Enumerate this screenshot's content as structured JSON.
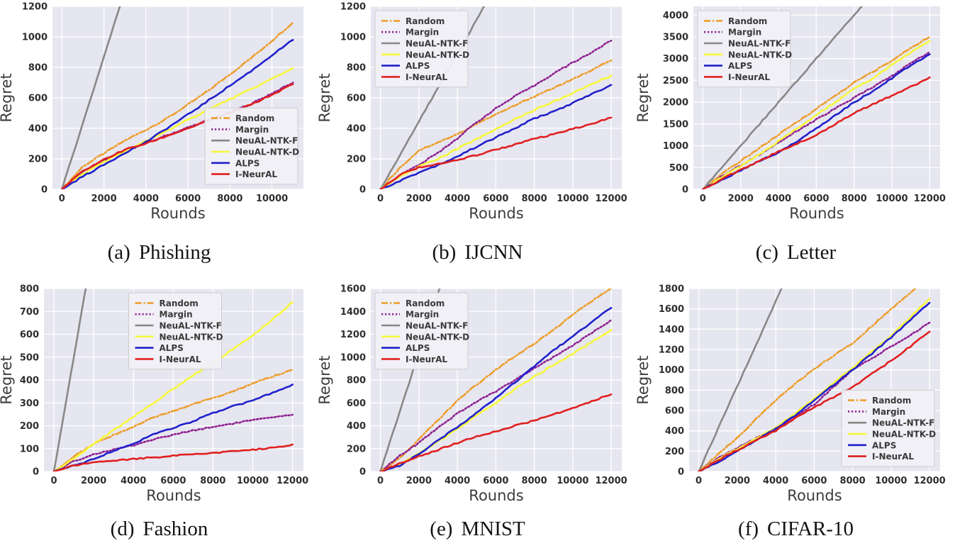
{
  "figure": {
    "background": "#ffffff",
    "plot_bg": "#E6E6F0",
    "grid_color": "#FFFFFF",
    "tick_color": "#2E2E2E",
    "axis_label_color": "#3C3C3C",
    "legend_bg": "#F0F0F6",
    "legend_border": "#CCCCCC",
    "legend_text_color": "#3A3A3A"
  },
  "series_meta": [
    {
      "name": "Random",
      "color": "#ED9E2D",
      "style": "dashdot"
    },
    {
      "name": "Margin",
      "color": "#8E2090",
      "style": "dotted"
    },
    {
      "name": "NeuAL-NTK-F",
      "color": "#888888",
      "style": "solid"
    },
    {
      "name": "NeuAL-NTK-D",
      "color": "#F7F73C",
      "style": "solid"
    },
    {
      "name": "ALPS",
      "color": "#2121CC",
      "style": "solid"
    },
    {
      "name": "I-NeurAL",
      "color": "#E02020",
      "style": "solid"
    }
  ],
  "chart_data": [
    {
      "id": "a",
      "type": "line",
      "caption_prefix": "(a)",
      "caption_label": "Phishing",
      "xlabel": "Rounds",
      "ylabel": "Regret",
      "xlim": [
        -450,
        11500
      ],
      "ylim": [
        0,
        1200
      ],
      "xticks": [
        0,
        2000,
        4000,
        6000,
        8000,
        10000
      ],
      "yticks": [
        0,
        200,
        400,
        600,
        800,
        1000,
        1200
      ],
      "grid": true,
      "legend_pos": "lower-right",
      "x": [
        0,
        1000,
        2000,
        3000,
        4000,
        5000,
        6000,
        7000,
        8000,
        9000,
        10000,
        11000
      ],
      "series": [
        {
          "name": "Random",
          "values": [
            0,
            150,
            235,
            320,
            390,
            465,
            555,
            650,
            755,
            860,
            975,
            1095
          ]
        },
        {
          "name": "Margin",
          "values": [
            0,
            115,
            190,
            255,
            300,
            355,
            405,
            455,
            505,
            560,
            630,
            700
          ]
        },
        {
          "name": "NeuAL-NTK-F",
          "values": [
            0,
            435,
            870,
            1305,
            1740,
            2175,
            2610,
            3045,
            3480,
            3915,
            4350,
            4785
          ]
        },
        {
          "name": "NeuAL-NTK-D",
          "values": [
            0,
            100,
            180,
            250,
            315,
            385,
            455,
            525,
            590,
            655,
            725,
            795
          ]
        },
        {
          "name": "ALPS",
          "values": [
            0,
            85,
            160,
            240,
            310,
            400,
            490,
            585,
            680,
            775,
            880,
            980
          ]
        },
        {
          "name": "I-NeurAL",
          "values": [
            0,
            120,
            195,
            260,
            300,
            350,
            400,
            450,
            500,
            555,
            620,
            690
          ]
        }
      ]
    },
    {
      "id": "b",
      "type": "line",
      "caption_prefix": "(b)",
      "caption_label": "IJCNN",
      "xlabel": "Rounds",
      "ylabel": "Regret",
      "xlim": [
        -500,
        12550
      ],
      "ylim": [
        0,
        1200
      ],
      "xticks": [
        0,
        2000,
        4000,
        6000,
        8000,
        10000,
        12000
      ],
      "yticks": [
        0,
        200,
        400,
        600,
        800,
        1000,
        1200
      ],
      "grid": true,
      "legend_pos": "upper-left",
      "x": [
        0,
        1000,
        2000,
        3000,
        4000,
        5000,
        6000,
        7000,
        8000,
        9000,
        10000,
        11000,
        12000
      ],
      "series": [
        {
          "name": "Random",
          "values": [
            0,
            140,
            255,
            310,
            360,
            430,
            490,
            550,
            610,
            665,
            720,
            785,
            845
          ]
        },
        {
          "name": "Margin",
          "values": [
            0,
            90,
            160,
            240,
            335,
            440,
            530,
            610,
            680,
            760,
            830,
            900,
            975
          ]
        },
        {
          "name": "NeuAL-NTK-F",
          "values": [
            0,
            222,
            444,
            667,
            889,
            1111,
            1333,
            1556,
            1778,
            2000,
            2222,
            2444,
            2667
          ]
        },
        {
          "name": "NeuAL-NTK-D",
          "values": [
            0,
            80,
            150,
            200,
            265,
            330,
            395,
            460,
            520,
            575,
            630,
            690,
            745
          ]
        },
        {
          "name": "ALPS",
          "values": [
            0,
            55,
            110,
            160,
            215,
            280,
            340,
            400,
            465,
            510,
            565,
            625,
            685
          ]
        },
        {
          "name": "I-NeurAL",
          "values": [
            0,
            95,
            145,
            165,
            190,
            225,
            260,
            295,
            330,
            360,
            395,
            430,
            470
          ]
        }
      ]
    },
    {
      "id": "c",
      "type": "line",
      "caption_prefix": "(c)",
      "caption_label": "Letter",
      "xlabel": "Rounds",
      "ylabel": "Regret",
      "xlim": [
        -500,
        12550
      ],
      "ylim": [
        0,
        4200
      ],
      "xticks": [
        0,
        2000,
        4000,
        6000,
        8000,
        10000,
        12000
      ],
      "yticks": [
        0,
        500,
        1000,
        1500,
        2000,
        2500,
        3000,
        3500,
        4000
      ],
      "grid": true,
      "legend_pos": "upper-left",
      "x": [
        0,
        1000,
        2000,
        3000,
        4000,
        5000,
        6000,
        7000,
        8000,
        9000,
        10000,
        11000,
        12000
      ],
      "series": [
        {
          "name": "Random",
          "values": [
            0,
            350,
            650,
            950,
            1250,
            1550,
            1850,
            2150,
            2450,
            2700,
            2950,
            3250,
            3500
          ]
        },
        {
          "name": "Margin",
          "values": [
            0,
            300,
            550,
            800,
            1075,
            1350,
            1600,
            1850,
            2100,
            2350,
            2600,
            2900,
            3150
          ]
        },
        {
          "name": "NeuAL-NTK-F",
          "values": [
            0,
            500,
            1000,
            1500,
            2000,
            2500,
            3000,
            3500,
            4000,
            4500,
            5000,
            5500,
            6000
          ]
        },
        {
          "name": "NeuAL-NTK-D",
          "values": [
            0,
            280,
            540,
            820,
            1100,
            1400,
            1700,
            2000,
            2300,
            2550,
            2850,
            3150,
            3400
          ]
        },
        {
          "name": "ALPS",
          "values": [
            0,
            220,
            430,
            650,
            850,
            1100,
            1400,
            1700,
            2000,
            2250,
            2550,
            2850,
            3100
          ]
        },
        {
          "name": "I-NeurAL",
          "values": [
            0,
            230,
            450,
            650,
            870,
            1050,
            1250,
            1500,
            1750,
            1950,
            2150,
            2350,
            2570
          ]
        }
      ]
    },
    {
      "id": "d",
      "type": "line",
      "caption_prefix": "(d)",
      "caption_label": "Fashion",
      "xlabel": "Rounds",
      "ylabel": "Regret",
      "xlim": [
        -500,
        12550
      ],
      "ylim": [
        0,
        800
      ],
      "xticks": [
        0,
        2000,
        4000,
        6000,
        8000,
        10000,
        12000
      ],
      "yticks": [
        0,
        100,
        200,
        300,
        400,
        500,
        600,
        700,
        800
      ],
      "grid": true,
      "legend_pos": "upper-center",
      "x": [
        0,
        1000,
        2000,
        3000,
        4000,
        5000,
        6000,
        7000,
        8000,
        9000,
        10000,
        11000,
        12000
      ],
      "series": [
        {
          "name": "Random",
          "values": [
            0,
            65,
            120,
            160,
            195,
            235,
            265,
            295,
            320,
            350,
            385,
            415,
            445
          ]
        },
        {
          "name": "Margin",
          "values": [
            0,
            45,
            75,
            95,
            115,
            140,
            160,
            180,
            195,
            210,
            225,
            235,
            248
          ]
        },
        {
          "name": "NeuAL-NTK-F",
          "values": [
            0,
            500,
            1000,
            1500,
            2000,
            2500,
            3000,
            3500,
            4000,
            4500,
            5000,
            5500,
            6000
          ]
        },
        {
          "name": "NeuAL-NTK-D",
          "values": [
            0,
            55,
            120,
            180,
            240,
            300,
            360,
            420,
            475,
            535,
            595,
            665,
            740
          ]
        },
        {
          "name": "ALPS",
          "values": [
            0,
            25,
            55,
            90,
            120,
            165,
            190,
            220,
            255,
            285,
            310,
            345,
            380
          ]
        },
        {
          "name": "I-NeurAL",
          "values": [
            0,
            25,
            40,
            48,
            55,
            62,
            68,
            75,
            80,
            88,
            95,
            105,
            118
          ]
        }
      ]
    },
    {
      "id": "e",
      "type": "line",
      "caption_prefix": "(e)",
      "caption_label": "MNIST",
      "xlabel": "Rounds",
      "ylabel": "Regret",
      "xlim": [
        -500,
        12550
      ],
      "ylim": [
        0,
        1600
      ],
      "xticks": [
        0,
        2000,
        4000,
        6000,
        8000,
        10000,
        12000
      ],
      "yticks": [
        0,
        200,
        400,
        600,
        800,
        1000,
        1200,
        1400,
        1600
      ],
      "grid": true,
      "legend_pos": "upper-left",
      "x": [
        0,
        1000,
        2000,
        3000,
        4000,
        5000,
        6000,
        7000,
        8000,
        9000,
        10000,
        11000,
        12000
      ],
      "series": [
        {
          "name": "Random",
          "values": [
            0,
            120,
            280,
            450,
            620,
            760,
            890,
            1010,
            1120,
            1240,
            1370,
            1490,
            1605
          ]
        },
        {
          "name": "Margin",
          "values": [
            0,
            140,
            250,
            380,
            505,
            610,
            700,
            800,
            900,
            1000,
            1100,
            1215,
            1325
          ]
        },
        {
          "name": "NeuAL-NTK-F",
          "values": [
            0,
            520,
            1040,
            1560,
            2080,
            2600,
            3120,
            3640,
            4160,
            4680,
            5200,
            5720,
            6240
          ]
        },
        {
          "name": "NeuAL-NTK-D",
          "values": [
            0,
            60,
            160,
            260,
            370,
            490,
            600,
            720,
            830,
            930,
            1030,
            1130,
            1240
          ]
        },
        {
          "name": "ALPS",
          "values": [
            0,
            50,
            150,
            270,
            390,
            510,
            640,
            780,
            920,
            1060,
            1180,
            1310,
            1430
          ]
        },
        {
          "name": "I-NeurAL",
          "values": [
            0,
            70,
            130,
            190,
            250,
            305,
            350,
            400,
            445,
            500,
            555,
            615,
            675
          ]
        }
      ]
    },
    {
      "id": "f",
      "type": "line",
      "caption_prefix": "(f)",
      "caption_label": "CIFAR-10",
      "xlabel": "Rounds",
      "ylabel": "Regret",
      "xlim": [
        -500,
        12550
      ],
      "ylim": [
        0,
        1800
      ],
      "xticks": [
        0,
        2000,
        4000,
        6000,
        8000,
        10000,
        12000
      ],
      "yticks": [
        0,
        200,
        400,
        600,
        800,
        1000,
        1200,
        1400,
        1600,
        1800
      ],
      "grid": true,
      "legend_pos": "lower-right",
      "x": [
        0,
        1000,
        2000,
        3000,
        4000,
        5000,
        6000,
        7000,
        8000,
        9000,
        10000,
        11000,
        12000
      ],
      "series": [
        {
          "name": "Random",
          "values": [
            0,
            170,
            330,
            520,
            700,
            860,
            1010,
            1140,
            1260,
            1430,
            1600,
            1760,
            1905
          ]
        },
        {
          "name": "Margin",
          "values": [
            0,
            130,
            230,
            330,
            420,
            540,
            660,
            830,
            1000,
            1110,
            1230,
            1340,
            1465
          ]
        },
        {
          "name": "NeuAL-NTK-F",
          "values": [
            0,
            419,
            837,
            1256,
            1674,
            2093,
            2512,
            2930,
            3349,
            3767,
            4186,
            4605,
            5023
          ]
        },
        {
          "name": "NeuAL-NTK-D",
          "values": [
            0,
            120,
            220,
            330,
            430,
            570,
            720,
            870,
            1020,
            1180,
            1330,
            1520,
            1700
          ]
        },
        {
          "name": "ALPS",
          "values": [
            0,
            90,
            200,
            310,
            420,
            550,
            700,
            850,
            1000,
            1160,
            1320,
            1490,
            1660
          ]
        },
        {
          "name": "I-NeurAL",
          "values": [
            0,
            110,
            210,
            310,
            400,
            520,
            630,
            730,
            830,
            960,
            1090,
            1230,
            1375
          ]
        }
      ]
    }
  ]
}
